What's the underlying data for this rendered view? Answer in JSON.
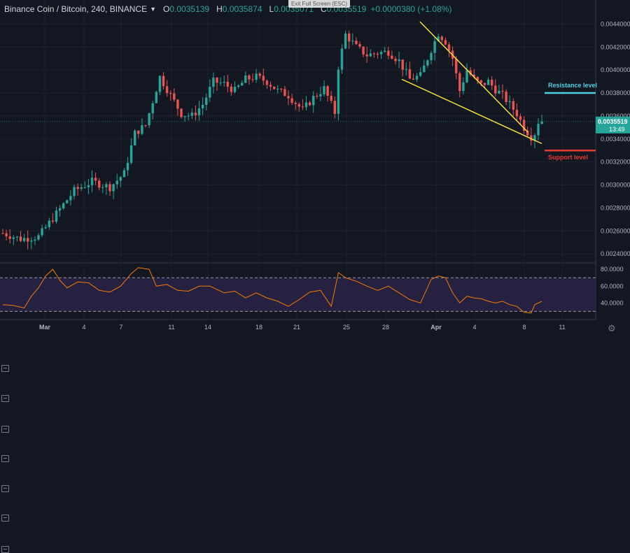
{
  "header": {
    "symbol": "Binance Coin / Bitcoin, 240, BINANCE",
    "open_label": "O",
    "open": "0.0035139",
    "high_label": "H",
    "high": "0.0035874",
    "low_label": "L",
    "low": "0.0035071",
    "close_label": "C",
    "close": "0.0035519",
    "change": "+0.0000380 (+1.08%)"
  },
  "exit_fullscreen": "Exit Full Screen (ESC)",
  "icons": {
    "caret": "caret-down-icon",
    "settings": "gear-icon",
    "tools": "chart-tool-icons"
  },
  "colors": {
    "background": "#131722",
    "up": "#26a69a",
    "down": "#ef5350",
    "trendline": "#ffeb3b",
    "resistance": "#4dd0e1",
    "support": "#e53935",
    "rsi_line": "#f57c00",
    "rsi_band": "#2a2247"
  },
  "chart_data": {
    "type": "candlestick",
    "price_axis": {
      "ylim": [
        0.00234,
        0.0045
      ],
      "ticks": [
        0.0024,
        0.0026,
        0.0028,
        0.003,
        0.0032,
        0.0034,
        0.0036,
        0.0038,
        0.004,
        0.0042,
        0.0044
      ],
      "tick_labels": [
        "0.0024000",
        "0.0026000",
        "0.0028000",
        "0.0030000",
        "0.0032000",
        "0.0034000",
        "0.0036000",
        "0.0038000",
        "0.0040000",
        "0.0042000",
        "0.0044000"
      ]
    },
    "x_labels": [
      "Mar",
      "4",
      "7",
      "11",
      "14",
      "18",
      "21",
      "25",
      "28",
      "Apr",
      "4",
      "8",
      "11"
    ],
    "current_price": {
      "value": 0.0035519,
      "label": "0.0035519",
      "countdown": "13:49"
    },
    "close_path": [
      [
        0,
        0.00258
      ],
      [
        5,
        0.00253
      ],
      [
        10,
        0.00255
      ],
      [
        15,
        0.00275
      ],
      [
        20,
        0.00295
      ],
      [
        25,
        0.00303
      ],
      [
        30,
        0.00298
      ],
      [
        34,
        0.0031
      ],
      [
        37,
        0.00345
      ],
      [
        40,
        0.00352
      ],
      [
        44,
        0.00394
      ],
      [
        47,
        0.00378
      ],
      [
        50,
        0.00362
      ],
      [
        53,
        0.0036
      ],
      [
        56,
        0.0037
      ],
      [
        59,
        0.0039
      ],
      [
        62,
        0.00388
      ],
      [
        65,
        0.00382
      ],
      [
        68,
        0.00392
      ],
      [
        71,
        0.00394
      ],
      [
        74,
        0.0039
      ],
      [
        77,
        0.00382
      ],
      [
        80,
        0.00378
      ],
      [
        84,
        0.00365
      ],
      [
        87,
        0.00376
      ],
      [
        90,
        0.00384
      ],
      [
        93,
        0.00363
      ],
      [
        94,
        0.00403
      ],
      [
        96,
        0.00431
      ],
      [
        99,
        0.0042
      ],
      [
        102,
        0.00413
      ],
      [
        105,
        0.00415
      ],
      [
        108,
        0.00416
      ],
      [
        111,
        0.00408
      ],
      [
        114,
        0.00392
      ],
      [
        117,
        0.00395
      ],
      [
        120,
        0.00418
      ],
      [
        122,
        0.00432
      ],
      [
        124,
        0.00425
      ],
      [
        126,
        0.0041
      ],
      [
        128,
        0.00382
      ],
      [
        130,
        0.004
      ],
      [
        132,
        0.00392
      ],
      [
        134,
        0.00387
      ],
      [
        136,
        0.0039
      ],
      [
        138,
        0.00383
      ],
      [
        140,
        0.00378
      ],
      [
        142,
        0.0037
      ],
      [
        144,
        0.00362
      ],
      [
        146,
        0.0035
      ],
      [
        148,
        0.00342
      ],
      [
        149,
        0.00345
      ],
      [
        150,
        0.00355
      ],
      [
        151,
        0.00355
      ]
    ],
    "trendlines": [
      {
        "name": "upper",
        "points": [
          [
            600,
            0.00442
          ],
          [
            754,
            0.00346
          ]
        ]
      },
      {
        "name": "lower",
        "points": [
          [
            574,
            0.00392
          ],
          [
            774,
            0.00336
          ]
        ]
      }
    ],
    "levels": [
      {
        "name": "resistance",
        "label": "Resistance level",
        "value": 0.0038,
        "x_start": 778
      },
      {
        "name": "support",
        "label": "Support level",
        "value": 0.0033,
        "x_start": 778
      }
    ],
    "rsi": {
      "ylim": [
        22,
        86
      ],
      "ticks": [
        40,
        60,
        80
      ],
      "tick_labels": [
        "40.0000",
        "60.0000",
        "80.0000"
      ],
      "bands": [
        30,
        70
      ],
      "series": [
        [
          0,
          38
        ],
        [
          3,
          37
        ],
        [
          6,
          34
        ],
        [
          8,
          48
        ],
        [
          10,
          58
        ],
        [
          12,
          72
        ],
        [
          14,
          80
        ],
        [
          16,
          67
        ],
        [
          18,
          58
        ],
        [
          21,
          65
        ],
        [
          24,
          64
        ],
        [
          27,
          55
        ],
        [
          30,
          53
        ],
        [
          33,
          60
        ],
        [
          36,
          75
        ],
        [
          38,
          82
        ],
        [
          41,
          80
        ],
        [
          43,
          60
        ],
        [
          46,
          62
        ],
        [
          49,
          55
        ],
        [
          52,
          54
        ],
        [
          55,
          60
        ],
        [
          58,
          60
        ],
        [
          62,
          52
        ],
        [
          65,
          54
        ],
        [
          68,
          46
        ],
        [
          71,
          52
        ],
        [
          74,
          46
        ],
        [
          77,
          42
        ],
        [
          80,
          36
        ],
        [
          83,
          44
        ],
        [
          86,
          53
        ],
        [
          89,
          55
        ],
        [
          92,
          36
        ],
        [
          94,
          76
        ],
        [
          96,
          70
        ],
        [
          99,
          66
        ],
        [
          102,
          60
        ],
        [
          105,
          55
        ],
        [
          108,
          60
        ],
        [
          111,
          52
        ],
        [
          114,
          44
        ],
        [
          117,
          40
        ],
        [
          120,
          68
        ],
        [
          122,
          72
        ],
        [
          124,
          70
        ],
        [
          126,
          52
        ],
        [
          128,
          40
        ],
        [
          130,
          48
        ],
        [
          132,
          46
        ],
        [
          134,
          45
        ],
        [
          136,
          42
        ],
        [
          138,
          40
        ],
        [
          140,
          42
        ],
        [
          142,
          38
        ],
        [
          144,
          36
        ],
        [
          146,
          29
        ],
        [
          148,
          28
        ],
        [
          149,
          38
        ],
        [
          151,
          42
        ]
      ]
    }
  }
}
